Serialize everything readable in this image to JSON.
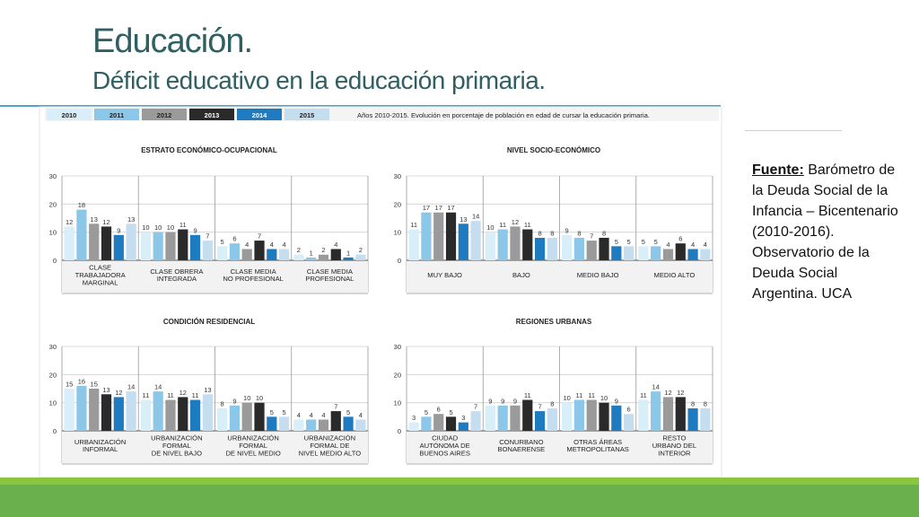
{
  "header": {
    "title": "Educación.",
    "subtitle": "Déficit educativo en la educación primaria."
  },
  "legend": {
    "years": [
      "2010",
      "2011",
      "2012",
      "2013",
      "2014",
      "2015"
    ],
    "description": "Años 2010-2015. Evolución en porcentaje de población en edad de cursar la educación primaria."
  },
  "colors": [
    "#d8eef8",
    "#8ac7e8",
    "#9a9a9a",
    "#2a2a2a",
    "#1f7bc0",
    "#c4def0"
  ],
  "source": {
    "label": "Fuente:",
    "text": "Barómetro de la Deuda Social de la Infancia – Bicentenario (2010-2016). Observatorio de la Deuda Social Argentina. UCA"
  },
  "chart_data": [
    {
      "type": "bar",
      "title": "ESTRATO ECONÓMICO-OCUPACIONAL",
      "ylim": [
        0,
        30
      ],
      "yticks": [
        "0",
        "10",
        "20",
        "30"
      ],
      "categories": [
        [
          "CLASE",
          "TRABAJADORA",
          "MARGINAL"
        ],
        [
          "CLASE OBRERA",
          "INTEGRADA"
        ],
        [
          "CLASE MEDIA",
          "NO PROFESIONAL"
        ],
        [
          "CLASE MEDIA",
          "PROFESIONAL"
        ]
      ],
      "series": [
        {
          "name": "2010",
          "values": [
            12,
            10,
            5,
            2
          ]
        },
        {
          "name": "2011",
          "values": [
            18,
            10,
            6,
            1
          ]
        },
        {
          "name": "2012",
          "values": [
            13,
            10,
            4,
            2
          ]
        },
        {
          "name": "2013",
          "values": [
            12,
            11,
            7,
            4
          ]
        },
        {
          "name": "2014",
          "values": [
            9,
            9,
            4,
            1
          ]
        },
        {
          "name": "2015",
          "values": [
            13,
            7,
            4,
            2
          ]
        }
      ]
    },
    {
      "type": "bar",
      "title": "NIVEL SOCIO-ECONÓMICO",
      "ylim": [
        0,
        30
      ],
      "yticks": [
        "0",
        "10",
        "20",
        "30"
      ],
      "categories": [
        [
          "MUY BAJO"
        ],
        [
          "BAJO"
        ],
        [
          "MEDIO BAJO"
        ],
        [
          "MEDIO ALTO"
        ]
      ],
      "series": [
        {
          "name": "2010",
          "values": [
            11,
            10,
            9,
            5
          ]
        },
        {
          "name": "2011",
          "values": [
            17,
            11,
            8,
            5
          ]
        },
        {
          "name": "2012",
          "values": [
            17,
            12,
            7,
            4
          ]
        },
        {
          "name": "2013",
          "values": [
            17,
            11,
            8,
            6
          ]
        },
        {
          "name": "2014",
          "values": [
            13,
            8,
            5,
            4
          ]
        },
        {
          "name": "2015",
          "values": [
            14,
            8,
            5,
            4
          ]
        }
      ]
    },
    {
      "type": "bar",
      "title": "CONDICIÓN RESIDENCIAL",
      "ylim": [
        0,
        30
      ],
      "yticks": [
        "0",
        "10",
        "20",
        "30"
      ],
      "categories": [
        [
          "URBANIZACIÓN",
          "INFORMAL"
        ],
        [
          "URBANIZACIÓN",
          "FORMAL",
          "DE NIVEL BAJO"
        ],
        [
          "URBANIZACIÓN",
          "FORMAL",
          "DE NIVEL MEDIO"
        ],
        [
          "URBANIZACIÓN",
          "FORMAL DE",
          "NIVEL MEDIO ALTO"
        ]
      ],
      "series": [
        {
          "name": "2010",
          "values": [
            15,
            11,
            8,
            4
          ]
        },
        {
          "name": "2011",
          "values": [
            16,
            14,
            9,
            4
          ]
        },
        {
          "name": "2012",
          "values": [
            15,
            11,
            10,
            4
          ]
        },
        {
          "name": "2013",
          "values": [
            13,
            12,
            10,
            7
          ]
        },
        {
          "name": "2014",
          "values": [
            12,
            11,
            5,
            5
          ]
        },
        {
          "name": "2015",
          "values": [
            14,
            13,
            5,
            4
          ]
        }
      ]
    },
    {
      "type": "bar",
      "title": "REGIONES URBANAS",
      "ylim": [
        0,
        30
      ],
      "yticks": [
        "0",
        "10",
        "20",
        "30"
      ],
      "categories": [
        [
          "CIUDAD",
          "AUTÓNOMA DE",
          "BUENOS AIRES"
        ],
        [
          "CONURBANO",
          "BONAERENSE"
        ],
        [
          "OTRAS ÁREAS",
          "METROPOLITANAS"
        ],
        [
          "RESTO",
          "URBANO DEL",
          "INTERIOR"
        ]
      ],
      "series": [
        {
          "name": "2010",
          "values": [
            3,
            9,
            10,
            11
          ]
        },
        {
          "name": "2011",
          "values": [
            5,
            9,
            11,
            14
          ]
        },
        {
          "name": "2012",
          "values": [
            6,
            9,
            11,
            12
          ]
        },
        {
          "name": "2013",
          "values": [
            5,
            11,
            10,
            12
          ]
        },
        {
          "name": "2014",
          "values": [
            3,
            7,
            9,
            8
          ]
        },
        {
          "name": "2015",
          "values": [
            7,
            8,
            6,
            8
          ]
        }
      ]
    }
  ]
}
